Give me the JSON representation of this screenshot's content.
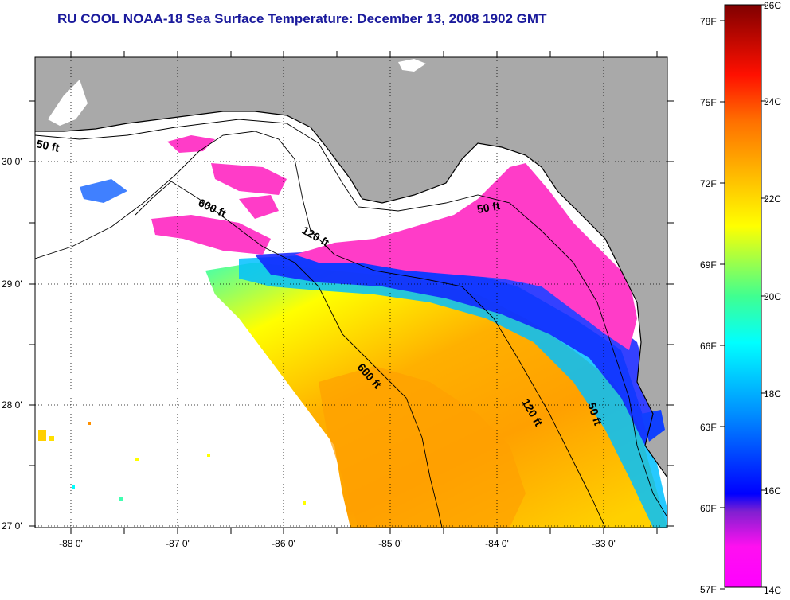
{
  "title": "RU COOL  NOAA-18  Sea Surface Temperature:  December 13, 2008 1902 GMT",
  "map": {
    "lon_labels": [
      "-88 0'",
      "-87 0'",
      "-86 0'",
      "-85 0'",
      "-84 0'",
      "-83 0'"
    ],
    "lat_labels": [
      "30 0'",
      "29 0'",
      "28 0'",
      "27 0'"
    ],
    "contour_labels": [
      {
        "id": "c50a",
        "text": "50 ft"
      },
      {
        "id": "c600a",
        "text": "600 ft"
      },
      {
        "id": "c120a",
        "text": "120 ft"
      },
      {
        "id": "c50b",
        "text": "50 ft"
      },
      {
        "id": "c600b",
        "text": "600 ft"
      },
      {
        "id": "c120b",
        "text": "120 ft"
      },
      {
        "id": "c50c",
        "text": "50 ft"
      }
    ],
    "colors": {
      "land": "#a9a9a9",
      "no_data": "#ffffff",
      "grid": "#000000"
    }
  },
  "colorbar": {
    "fahrenheit_labels": [
      "78F",
      "75F",
      "72F",
      "69F",
      "66F",
      "63F",
      "60F",
      "57F"
    ],
    "celsius_labels": [
      "26C",
      "24C",
      "22C",
      "20C",
      "18C",
      "16C",
      "14C"
    ],
    "stops": [
      "#ff00ff",
      "#a020f0",
      "#0000ff",
      "#0080ff",
      "#00ffff",
      "#40ff80",
      "#ffff00",
      "#ffa000",
      "#ff6000",
      "#ff0000",
      "#c00000",
      "#800000"
    ]
  }
}
